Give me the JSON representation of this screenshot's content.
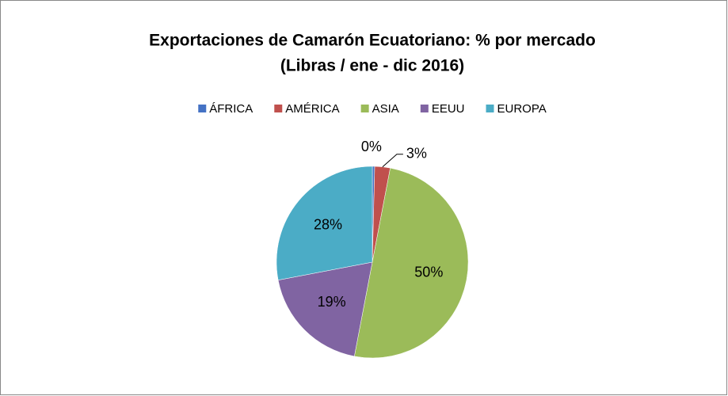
{
  "chart_data": {
    "type": "pie",
    "title": "Exportaciones de Camarón Ecuatoriano: % por mercado",
    "subtitle": "(Libras / ene - dic 2016)",
    "categories": [
      "ÁFRICA",
      "AMÉRICA",
      "ASIA",
      "EEUU",
      "EUROPA"
    ],
    "values": [
      0.4,
      2.6,
      50,
      19,
      28
    ],
    "value_labels": [
      "0%",
      "3%",
      "50%",
      "19%",
      "28%"
    ],
    "colors": [
      "#4472c4",
      "#c0504d",
      "#9bbb59",
      "#8064a2",
      "#4bacc6"
    ],
    "legend": "top"
  }
}
